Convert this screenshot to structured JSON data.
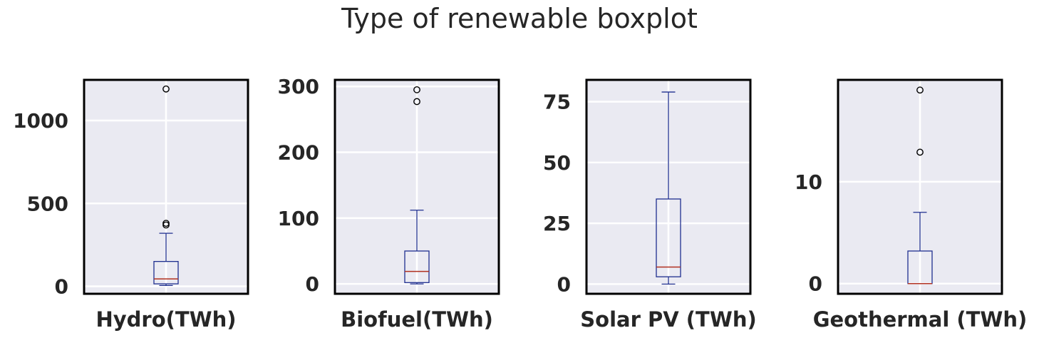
{
  "title": "Type of renewable boxplot",
  "colors": {
    "background": "#eaeaf2",
    "grid": "#ffffff",
    "box": "#1f2f8f",
    "median": "#b03020",
    "frame": "#000000",
    "text": "#262626"
  },
  "chart_data": [
    {
      "type": "box",
      "xlabel": "Hydro(TWh)",
      "ylim": [
        -45,
        1245
      ],
      "yticks": [
        0,
        500,
        1000
      ],
      "tick_labels": [
        "0",
        "500",
        "1000"
      ],
      "stats": {
        "whislo": 5,
        "q1": 15,
        "med": 45,
        "q3": 150,
        "whishi": 320
      },
      "fliers": [
        370,
        380,
        1190
      ]
    },
    {
      "type": "box",
      "xlabel": "Biofuel(TWh)",
      "ylim": [
        -15,
        310
      ],
      "yticks": [
        0,
        100,
        200,
        300
      ],
      "tick_labels": [
        "0",
        "100",
        "200",
        "300"
      ],
      "stats": {
        "whislo": 0,
        "q1": 2,
        "med": 19,
        "q3": 50,
        "whishi": 112
      },
      "fliers": [
        277,
        295
      ]
    },
    {
      "type": "box",
      "xlabel": "Solar PV (TWh)",
      "ylim": [
        -4,
        84
      ],
      "yticks": [
        0,
        25,
        50,
        75
      ],
      "tick_labels": [
        "0",
        "25",
        "50",
        "75"
      ],
      "stats": {
        "whislo": 0,
        "q1": 3,
        "med": 7,
        "q3": 35,
        "whishi": 79
      },
      "fliers": []
    },
    {
      "type": "box",
      "xlabel": "Geothermal (TWh)",
      "ylim": [
        -1,
        20
      ],
      "yticks": [
        0,
        10
      ],
      "tick_labels": [
        "0",
        "10"
      ],
      "stats": {
        "whislo": 0,
        "q1": 0,
        "med": 0,
        "q3": 3.2,
        "whishi": 7
      },
      "fliers": [
        12.9,
        19
      ]
    }
  ]
}
